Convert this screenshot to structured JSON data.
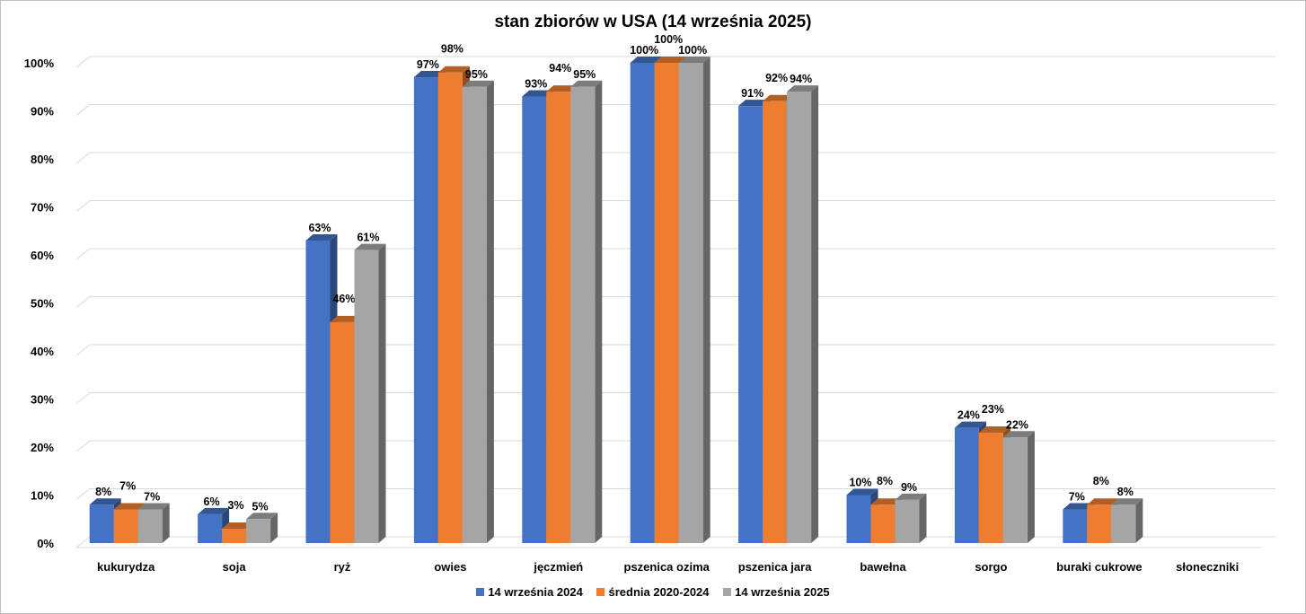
{
  "chart_data": {
    "type": "bar",
    "title": "stan zbiorów w USA (14 września 2025)",
    "categories": [
      "kukurydza",
      "soja",
      "ryż",
      "owies",
      "jęczmień",
      "pszenica ozima",
      "pszenica jara",
      "bawełna",
      "sorgo",
      "buraki cukrowe",
      "słoneczniki"
    ],
    "series": [
      {
        "name": "14 września 2024",
        "color": "#4472C4",
        "values": [
          8,
          6,
          63,
          97,
          93,
          100,
          91,
          10,
          24,
          7,
          null
        ]
      },
      {
        "name": "średnia 2020-2024",
        "color": "#ED7D31",
        "values": [
          7,
          3,
          46,
          98,
          94,
          100,
          92,
          8,
          23,
          8,
          null
        ]
      },
      {
        "name": "14 września 2025",
        "color": "#A5A5A5",
        "values": [
          7,
          5,
          61,
          95,
          95,
          100,
          94,
          9,
          22,
          8,
          null
        ]
      }
    ],
    "yticks": [
      "0%",
      "10%",
      "20%",
      "30%",
      "40%",
      "50%",
      "60%",
      "70%",
      "80%",
      "90%",
      "100%"
    ],
    "ylim": [
      0,
      100
    ],
    "xlabel": "",
    "ylabel": "",
    "legend_position": "bottom",
    "grid": true
  }
}
